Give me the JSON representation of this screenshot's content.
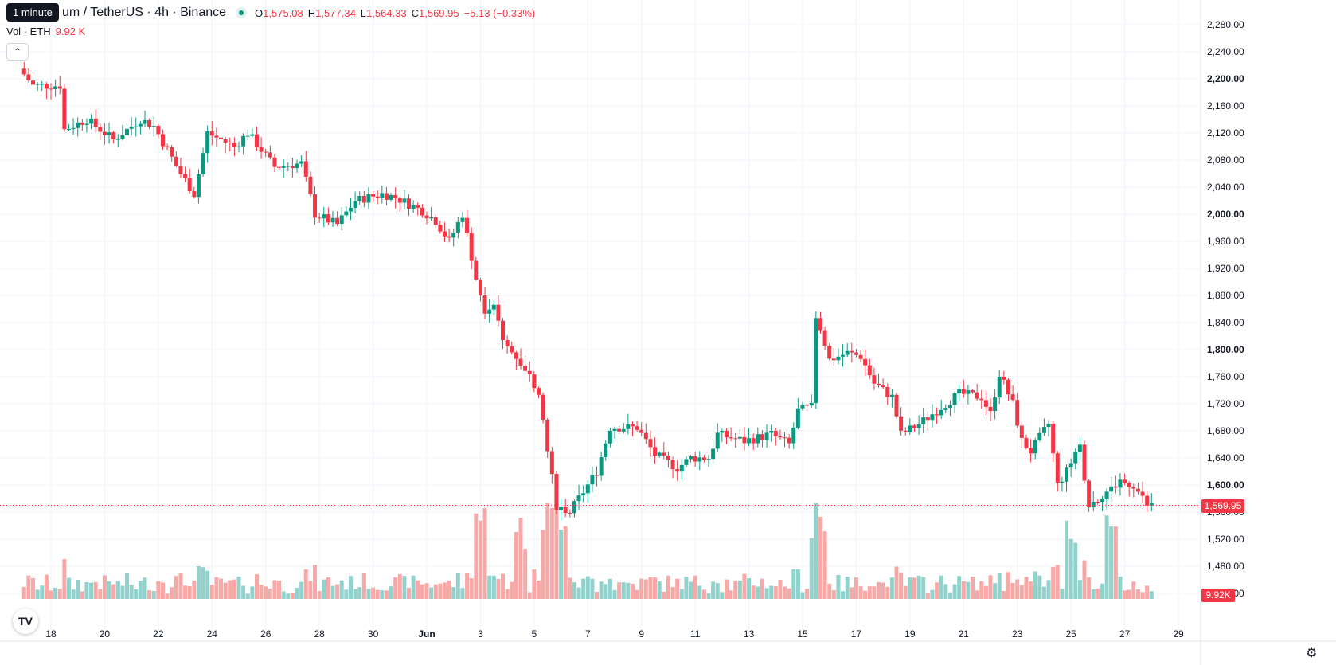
{
  "header": {
    "tooltip": "1 minute",
    "symbol": "Ethereum / TetherUS · 4h · Binance",
    "symbol_visible": "um / TetherUS · 4h · Binance",
    "open_label": "O",
    "open": "1,575.08",
    "high_label": "H",
    "high": "1,577.34",
    "low_label": "L",
    "low": "1,564.33",
    "close_label": "C",
    "close": "1,569.95",
    "change": "−5.13 (−0.33%)"
  },
  "volume_legend": {
    "label": "Vol · ETH",
    "value": "9.92 K"
  },
  "price_tags": {
    "last_price": "1,569.95",
    "last_volume": "9.92K"
  },
  "colors": {
    "up": "#089981",
    "down": "#f23645",
    "up_vol": "#92d2cc",
    "down_vol": "#f7a9a7",
    "grid": "#f0f3fa"
  },
  "icons": {
    "collapse": "chevron-up-icon",
    "logo": "tradingview-logo",
    "settings": "gear-icon"
  },
  "chart_data": {
    "type": "candlestick",
    "title": "Ethereum / TetherUS · 4h · Binance",
    "ylim": [
      1450,
      2300
    ],
    "y_ticks": [
      "2,280.00",
      "2,240.00",
      "2,200.00",
      "2,160.00",
      "2,120.00",
      "2,080.00",
      "2,040.00",
      "2,000.00",
      "1,960.00",
      "1,920.00",
      "1,880.00",
      "1,840.00",
      "1,800.00",
      "1,760.00",
      "1,720.00",
      "1,680.00",
      "1,640.00",
      "1,600.00",
      "1,560.00",
      "1,520.00",
      "1,480.00",
      "1,440.00"
    ],
    "x_ticks": [
      "18",
      "20",
      "22",
      "24",
      "26",
      "28",
      "30",
      "Jun",
      "3",
      "5",
      "7",
      "9",
      "11",
      "13",
      "15",
      "17",
      "19",
      "21",
      "23",
      "25",
      "27",
      "29"
    ],
    "keypoints": [
      [
        "May 17 00:00",
        2215
      ],
      [
        "May 17 12:00",
        2190
      ],
      [
        "May 18 12:00",
        2190
      ],
      [
        "May 18 16:00",
        2125
      ],
      [
        "May 19 12:00",
        2140
      ],
      [
        "May 20 12:00",
        2110
      ],
      [
        "May 21 12:00",
        2140
      ],
      [
        "May 22 00:00",
        2130
      ],
      [
        "May 23 00:00",
        2060
      ],
      [
        "May 23 12:00",
        2030
      ],
      [
        "May 24 00:00",
        2120
      ],
      [
        "May 25 00:00",
        2100
      ],
      [
        "May 25 12:00",
        2120
      ],
      [
        "May 26 12:00",
        2070
      ],
      [
        "May 27 12:00",
        2075
      ],
      [
        "May 28 00:00",
        2000
      ],
      [
        "May 28 20:00",
        1985
      ],
      [
        "May 29 12:00",
        2020
      ],
      [
        "May 30 12:00",
        2030
      ],
      [
        "May 31 00:00",
        2025
      ],
      [
        "Jun 1 00:00",
        2005
      ],
      [
        "Jun 1 12:00",
        1990
      ],
      [
        "Jun 2 00:00",
        1960
      ],
      [
        "Jun 2 12:00",
        2000
      ],
      [
        "Jun 3 00:00",
        1905
      ],
      [
        "Jun 3 08:00",
        1860
      ],
      [
        "Jun 3 16:00",
        1870
      ],
      [
        "Jun 4 00:00",
        1810
      ],
      [
        "Jun 4 12:00",
        1790
      ],
      [
        "Jun 5 00:00",
        1760
      ],
      [
        "Jun 5 08:00",
        1740
      ],
      [
        "Jun 5 16:00",
        1650
      ],
      [
        "Jun 6 00:00",
        1570
      ],
      [
        "Jun 6 12:00",
        1560
      ],
      [
        "Jun 7 00:00",
        1590
      ],
      [
        "Jun 7 12:00",
        1620
      ],
      [
        "Jun 8 00:00",
        1685
      ],
      [
        "Jun 9 00:00",
        1685
      ],
      [
        "Jun 9 16:00",
        1645
      ],
      [
        "Jun 10 12:00",
        1625
      ],
      [
        "Jun 11 00:00",
        1640
      ],
      [
        "Jun 11 16:00",
        1640
      ],
      [
        "Jun 12 00:00",
        1675
      ],
      [
        "Jun 13 00:00",
        1665
      ],
      [
        "Jun 14 00:00",
        1675
      ],
      [
        "Jun 14 16:00",
        1660
      ],
      [
        "Jun 15 00:00",
        1710
      ],
      [
        "Jun 15 12:00",
        1715
      ],
      [
        "Jun 15 16:00",
        1845
      ],
      [
        "Jun 16 04:00",
        1785
      ],
      [
        "Jun 16 20:00",
        1795
      ],
      [
        "Jun 17 08:00",
        1790
      ],
      [
        "Jun 17 20:00",
        1750
      ],
      [
        "Jun 18 12:00",
        1730
      ],
      [
        "Jun 18 20:00",
        1675
      ],
      [
        "Jun 19 12:00",
        1690
      ],
      [
        "Jun 20 12:00",
        1720
      ],
      [
        "Jun 21 00:00",
        1735
      ],
      [
        "Jun 21 20:00",
        1730
      ],
      [
        "Jun 22 04:00",
        1705
      ],
      [
        "Jun 22 12:00",
        1765
      ],
      [
        "Jun 23 00:00",
        1720
      ],
      [
        "Jun 23 08:00",
        1665
      ],
      [
        "Jun 23 16:00",
        1650
      ],
      [
        "Jun 24 08:00",
        1690
      ],
      [
        "Jun 24 16:00",
        1600
      ],
      [
        "Jun 25 00:00",
        1620
      ],
      [
        "Jun 25 12:00",
        1655
      ],
      [
        "Jun 25 20:00",
        1570
      ],
      [
        "Jun 26 12:00",
        1590
      ],
      [
        "Jun 27 00:00",
        1605
      ],
      [
        "Jun 27 12:00",
        1600
      ],
      [
        "Jun 28 00:00",
        1570
      ]
    ],
    "volume_spikes": [
      [
        "Jun 3 00:00",
        "high"
      ],
      [
        "Jun 4 12:00",
        "high"
      ],
      [
        "Jun 5 12:00",
        "high"
      ],
      [
        "Jun 6 00:00",
        "high"
      ],
      [
        "Jun 15 12:00",
        "high"
      ],
      [
        "Jun 15 16:00",
        "high"
      ],
      [
        "Jun 25 00:00",
        "high"
      ],
      [
        "Jun 26 12:00",
        "high"
      ]
    ]
  }
}
